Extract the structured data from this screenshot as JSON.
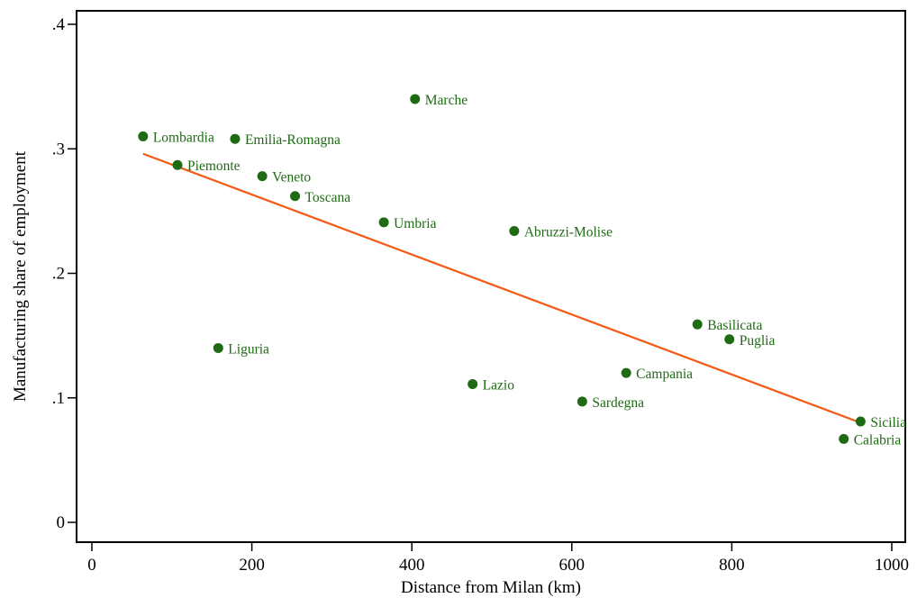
{
  "chart_data": {
    "type": "scatter",
    "xlabel": "Distance from Milan (km)",
    "ylabel": "Manufacturing share of employment",
    "xlim": [
      0,
      1000
    ],
    "ylim": [
      0,
      0.4
    ],
    "xticks": [
      {
        "value": 0,
        "label": "0"
      },
      {
        "value": 200,
        "label": "200"
      },
      {
        "value": 400,
        "label": "400"
      },
      {
        "value": 600,
        "label": "600"
      },
      {
        "value": 800,
        "label": "800"
      },
      {
        "value": 1000,
        "label": "1000"
      }
    ],
    "yticks": [
      {
        "value": 0,
        "label": "0"
      },
      {
        "value": 0.1,
        "label": ".1"
      },
      {
        "value": 0.2,
        "label": ".2"
      },
      {
        "value": 0.3,
        "label": ".3"
      },
      {
        "value": 0.4,
        "label": ".4"
      }
    ],
    "grid": false,
    "legend": "none",
    "colors": {
      "points": "#1e6b14",
      "labels": "#1e6b14",
      "fit_line": "#f05a14"
    },
    "points": [
      {
        "label": "Lombardia",
        "x": 64,
        "y": 0.31
      },
      {
        "label": "Emilia-Romagna",
        "x": 179,
        "y": 0.308
      },
      {
        "label": "Piemonte",
        "x": 107,
        "y": 0.287
      },
      {
        "label": "Veneto",
        "x": 213,
        "y": 0.278
      },
      {
        "label": "Toscana",
        "x": 254,
        "y": 0.262
      },
      {
        "label": "Marche",
        "x": 404,
        "y": 0.34
      },
      {
        "label": "Umbria",
        "x": 365,
        "y": 0.241
      },
      {
        "label": "Abruzzi-Molise",
        "x": 528,
        "y": 0.234
      },
      {
        "label": "Liguria",
        "x": 158,
        "y": 0.14
      },
      {
        "label": "Lazio",
        "x": 476,
        "y": 0.111
      },
      {
        "label": "Campania",
        "x": 668,
        "y": 0.12
      },
      {
        "label": "Sardegna",
        "x": 613,
        "y": 0.097
      },
      {
        "label": "Basilicata",
        "x": 757,
        "y": 0.159
      },
      {
        "label": "Puglia",
        "x": 797,
        "y": 0.147
      },
      {
        "label": "Sicilia",
        "x": 961,
        "y": 0.081
      },
      {
        "label": "Calabria",
        "x": 940,
        "y": 0.067
      }
    ],
    "fit_line": {
      "x": [
        64,
        961
      ],
      "y": [
        0.296,
        0.08
      ]
    }
  }
}
